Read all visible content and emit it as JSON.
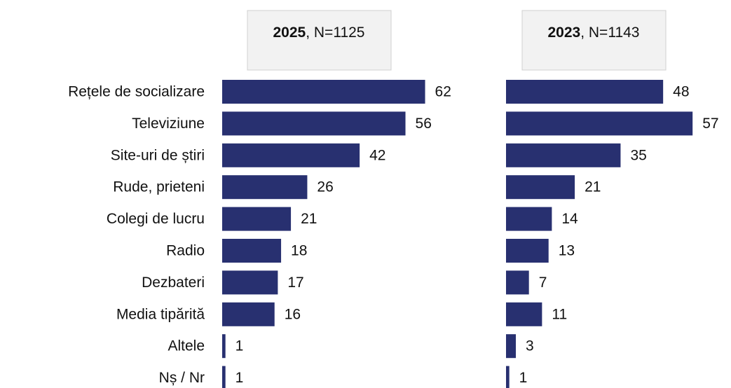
{
  "chart_data": [
    {
      "type": "bar",
      "orientation": "horizontal",
      "title": "2025",
      "subtitle": ", N=1125",
      "color": "#283070",
      "categories": [
        "Rețele de socializare",
        "Televiziune",
        "Site-uri de știri",
        "Rude, prieteni",
        "Colegi de lucru",
        "Radio",
        "Dezbateri",
        "Media tipărită",
        "Altele",
        "Nș / Nr"
      ],
      "values": [
        62,
        56,
        42,
        26,
        21,
        18,
        17,
        16,
        1,
        1
      ]
    },
    {
      "type": "bar",
      "orientation": "horizontal",
      "title": "2023",
      "subtitle": ", N=1143",
      "color": "#283070",
      "values": [
        48,
        57,
        35,
        21,
        14,
        13,
        7,
        11,
        3,
        1
      ]
    }
  ]
}
